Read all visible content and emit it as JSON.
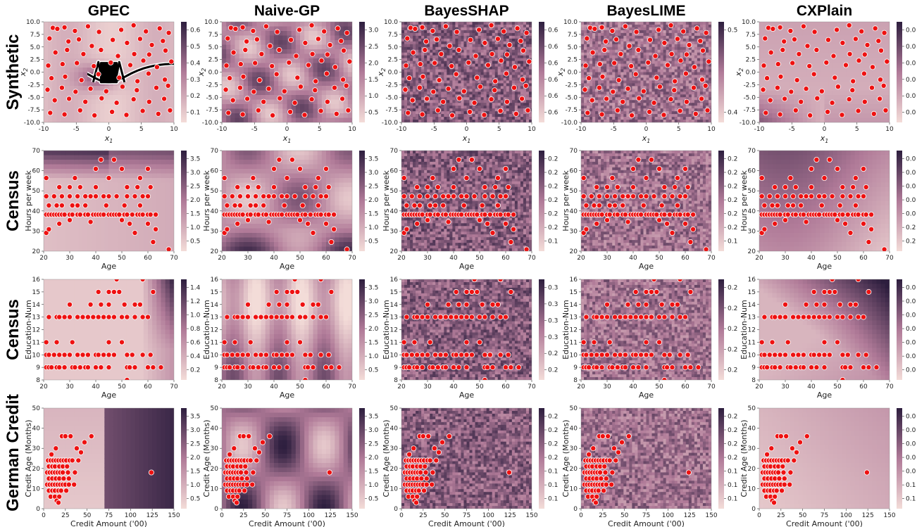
{
  "figure": {
    "methods": [
      "GPEC",
      "Naive-GP",
      "BayesSHAP",
      "BayesLIME",
      "CXPlain"
    ],
    "datasets": [
      "Synthetic",
      "Census",
      "Census",
      "German Credit"
    ],
    "colors": {
      "cmap_low": "#f3dcd8",
      "cmap_mid": "#b07a98",
      "cmap_high": "#2d1e3e",
      "points": "#ee1111",
      "point_edge": "#ffffff",
      "boundary": "#000000",
      "boundary_halo": "#ffffff"
    }
  },
  "chart_data": [
    {
      "type": "heatmap",
      "row": 0,
      "panel": "Synthetic",
      "xlabel": "x1",
      "ylabel": "x2",
      "xlim": [
        -10,
        10
      ],
      "ylim": [
        -10,
        10
      ],
      "xticks": [
        "-10",
        "-5",
        "0",
        "5",
        "10"
      ],
      "yticks": [
        "-10.0",
        "-7.5",
        "-5.0",
        "-2.5",
        "0.0",
        "2.5",
        "5.0",
        "7.5",
        "10.0"
      ],
      "colorbars": [
        [
          "0.1",
          "0.2",
          "0.3",
          "0.4",
          "0.5",
          "0.6"
        ],
        [
          "0.5",
          "1.0",
          "1.5",
          "2.0",
          "2.5",
          "3.0"
        ],
        [
          "0.6",
          "0.6",
          "0.6",
          "0.6",
          "0.6",
          "0.6"
        ],
        [
          "0.4",
          "0.5"
        ],
        [
          "0.0",
          "0.0",
          "0.0",
          "0.0",
          "0.0",
          "0.0"
        ]
      ],
      "points": [
        [
          -8.6,
          8.8
        ],
        [
          -7.9,
          8.6
        ],
        [
          -6.8,
          8.9
        ],
        [
          -5.2,
          8.2
        ],
        [
          -3.2,
          9.1
        ],
        [
          -1.5,
          8.0
        ],
        [
          1.9,
          8.4
        ],
        [
          3.8,
          9.3
        ],
        [
          5.7,
          8.1
        ],
        [
          7.8,
          8.7
        ],
        [
          9.2,
          7.8
        ],
        [
          -9.1,
          6.7
        ],
        [
          -6.2,
          6.1
        ],
        [
          -4.6,
          6.5
        ],
        [
          -2.6,
          5.2
        ],
        [
          0.6,
          6.4
        ],
        [
          2.8,
          5.8
        ],
        [
          4.8,
          6.6
        ],
        [
          6.6,
          5.4
        ],
        [
          8.3,
          6.2
        ],
        [
          -8.2,
          3.9
        ],
        [
          -6.4,
          4.4
        ],
        [
          -3.9,
          3.6
        ],
        [
          -1.2,
          4.4
        ],
        [
          1.4,
          3.2
        ],
        [
          3.9,
          3.6
        ],
        [
          6.2,
          3.5
        ],
        [
          8.7,
          4.3
        ],
        [
          -9.3,
          1.3
        ],
        [
          -7.1,
          1.6
        ],
        [
          -4.9,
          1.8
        ],
        [
          -2.3,
          1.2
        ],
        [
          0.3,
          1.9
        ],
        [
          3.3,
          1.4
        ],
        [
          5.3,
          2.3
        ],
        [
          7.4,
          1.0
        ],
        [
          9.6,
          2.1
        ],
        [
          -8.8,
          -1.2
        ],
        [
          -6.7,
          -0.9
        ],
        [
          -4.2,
          -1.6
        ],
        [
          -1.6,
          -0.4
        ],
        [
          1.6,
          -1.1
        ],
        [
          4.4,
          -1.8
        ],
        [
          6.1,
          -0.3
        ],
        [
          8.6,
          -1.5
        ],
        [
          -9.4,
          -3.5
        ],
        [
          -7.2,
          -3.1
        ],
        [
          -5.1,
          -3.9
        ],
        [
          -2.8,
          -3.3
        ],
        [
          -0.4,
          -3.8
        ],
        [
          2.1,
          -2.9
        ],
        [
          4.3,
          -3.6
        ],
        [
          7.3,
          -3.1
        ],
        [
          9.1,
          -2.7
        ],
        [
          -8.3,
          -5.6
        ],
        [
          -6.1,
          -5.3
        ],
        [
          -3.6,
          -5.9
        ],
        [
          -1.1,
          -5.2
        ],
        [
          1.2,
          -6.1
        ],
        [
          3.8,
          -5.4
        ],
        [
          6.2,
          -5.9
        ],
        [
          8.5,
          -5.3
        ],
        [
          -9.0,
          -8.1
        ],
        [
          -6.8,
          -8.4
        ],
        [
          -4.4,
          -7.6
        ],
        [
          -2.2,
          -8.6
        ],
        [
          0.5,
          -7.9
        ],
        [
          2.7,
          -8.5
        ],
        [
          5.2,
          -7.7
        ],
        [
          7.6,
          -8.3
        ],
        [
          9.4,
          -7.6
        ]
      ]
    },
    {
      "type": "heatmap",
      "row": 1,
      "panel": "Census",
      "xlabel": "Age",
      "ylabel": "Hours per week",
      "xlim": [
        20,
        70
      ],
      "ylim": [
        20,
        75
      ],
      "xticks": [
        "20",
        "30",
        "40",
        "50",
        "60",
        "70"
      ],
      "yticks": [
        "20",
        "30",
        "40",
        "50",
        "60",
        "70"
      ],
      "colorbars": [
        [
          "0.5",
          "1.0",
          "1.5",
          "2.0",
          "2.5",
          "3.0",
          "3.5"
        ],
        [
          "0.5",
          "1.0",
          "1.5",
          "2.0",
          "2.5",
          "3.0",
          "3.5"
        ],
        [
          "0.1",
          "0.2",
          "0.2",
          "0.2",
          "0.2",
          "0.2",
          "0.2"
        ],
        [
          "0.1",
          "0.2",
          "0.2",
          "0.2",
          "0.2",
          "0.2",
          "0.2"
        ],
        [
          "0.2",
          "0.2",
          "0.0",
          "0.0",
          "0.0",
          "0.0",
          "0.0"
        ]
      ],
      "points": [
        [
          21,
          40
        ],
        [
          22,
          40
        ],
        [
          23,
          40
        ],
        [
          24,
          40
        ],
        [
          25,
          40
        ],
        [
          26,
          40
        ],
        [
          27,
          40
        ],
        [
          28,
          40
        ],
        [
          30,
          40
        ],
        [
          31,
          40
        ],
        [
          33,
          40
        ],
        [
          34,
          40
        ],
        [
          36,
          40
        ],
        [
          37,
          40
        ],
        [
          39,
          40
        ],
        [
          40,
          40
        ],
        [
          41,
          40
        ],
        [
          42,
          40
        ],
        [
          43,
          40
        ],
        [
          45,
          40
        ],
        [
          46,
          40
        ],
        [
          47,
          40
        ],
        [
          48,
          40
        ],
        [
          49,
          40
        ],
        [
          51,
          40
        ],
        [
          52,
          40
        ],
        [
          54,
          40
        ],
        [
          56,
          40
        ],
        [
          57,
          40
        ],
        [
          58,
          40
        ],
        [
          60,
          40
        ],
        [
          61,
          40
        ],
        [
          63,
          40
        ],
        [
          22,
          45
        ],
        [
          25,
          45
        ],
        [
          27,
          45
        ],
        [
          31,
          45
        ],
        [
          33,
          45
        ],
        [
          36,
          45
        ],
        [
          44,
          45
        ],
        [
          51,
          45
        ],
        [
          57,
          45
        ],
        [
          21,
          50
        ],
        [
          24,
          50
        ],
        [
          27,
          50
        ],
        [
          30,
          50
        ],
        [
          33,
          50
        ],
        [
          36,
          50
        ],
        [
          38,
          50
        ],
        [
          40,
          50
        ],
        [
          43,
          50
        ],
        [
          45,
          50
        ],
        [
          48,
          50
        ],
        [
          52,
          50
        ],
        [
          55,
          50
        ],
        [
          58,
          50
        ],
        [
          60,
          50
        ],
        [
          26,
          55
        ],
        [
          30,
          55
        ],
        [
          34,
          55
        ],
        [
          40,
          55
        ],
        [
          52,
          55
        ],
        [
          56,
          55
        ],
        [
          61,
          55
        ],
        [
          45,
          60
        ],
        [
          21,
          60
        ],
        [
          57,
          60
        ],
        [
          32,
          60
        ],
        [
          40,
          65
        ],
        [
          50,
          65
        ],
        [
          60,
          65
        ],
        [
          42,
          70
        ],
        [
          47,
          70
        ],
        [
          21,
          30
        ],
        [
          22,
          32
        ],
        [
          55,
          30
        ],
        [
          60,
          35
        ],
        [
          63,
          32
        ],
        [
          62,
          25
        ],
        [
          68,
          21
        ],
        [
          26,
          35
        ],
        [
          30,
          37
        ],
        [
          38,
          36
        ],
        [
          50,
          37
        ],
        [
          53,
          35
        ]
      ]
    },
    {
      "type": "heatmap",
      "row": 2,
      "panel": "Census",
      "xlabel": "Age",
      "ylabel": "Education-Num",
      "xlim": [
        20,
        70
      ],
      "ylim": [
        8,
        16
      ],
      "xticks": [
        "20",
        "30",
        "40",
        "50",
        "60",
        "70"
      ],
      "yticks": [
        "8",
        "9",
        "10",
        "11",
        "12",
        "13",
        "14",
        "15",
        "16"
      ],
      "colorbars": [
        [
          "0.2",
          "0.4",
          "0.6",
          "0.8",
          "1.0",
          "1.2",
          "1.4"
        ],
        [
          "0.5",
          "1.0",
          "1.5",
          "2.0",
          "2.5",
          "3.0",
          "3.5"
        ],
        [
          "0.2",
          "0.2",
          "0.3",
          "0.3",
          "0.3",
          "0.3"
        ],
        [
          "0.2",
          "0.2",
          "0.2",
          "0.2",
          "0.2"
        ],
        [
          "0.0",
          "0.0",
          "0.0",
          "0.0",
          "0.0",
          "0.0",
          "0.0"
        ]
      ],
      "points": [
        [
          21,
          9
        ],
        [
          22,
          9
        ],
        [
          23,
          9
        ],
        [
          25,
          9
        ],
        [
          26,
          9
        ],
        [
          28,
          9
        ],
        [
          31,
          9
        ],
        [
          32,
          9
        ],
        [
          34,
          9
        ],
        [
          36,
          9
        ],
        [
          37,
          9
        ],
        [
          40,
          9
        ],
        [
          42,
          9
        ],
        [
          45,
          9
        ],
        [
          52,
          9
        ],
        [
          53,
          9
        ],
        [
          55,
          9
        ],
        [
          60,
          9
        ],
        [
          62,
          9
        ],
        [
          65,
          9
        ],
        [
          21,
          10
        ],
        [
          22,
          10
        ],
        [
          24,
          10
        ],
        [
          26,
          10
        ],
        [
          28,
          10
        ],
        [
          30,
          10
        ],
        [
          33,
          10
        ],
        [
          35,
          10
        ],
        [
          37,
          10
        ],
        [
          40,
          10
        ],
        [
          41,
          10
        ],
        [
          43,
          10
        ],
        [
          45,
          10
        ],
        [
          47,
          10
        ],
        [
          52,
          10
        ],
        [
          54,
          10
        ],
        [
          58,
          10
        ],
        [
          61,
          10
        ],
        [
          21,
          11
        ],
        [
          25,
          11
        ],
        [
          31,
          11
        ],
        [
          45,
          11
        ],
        [
          50,
          11
        ],
        [
          22,
          13
        ],
        [
          25,
          13
        ],
        [
          26,
          13
        ],
        [
          28,
          13
        ],
        [
          30,
          13
        ],
        [
          33,
          13
        ],
        [
          35,
          13
        ],
        [
          37,
          13
        ],
        [
          39,
          13
        ],
        [
          41,
          13
        ],
        [
          43,
          13
        ],
        [
          45,
          13
        ],
        [
          47,
          13
        ],
        [
          50,
          13
        ],
        [
          52,
          13
        ],
        [
          55,
          13
        ],
        [
          58,
          13
        ],
        [
          60,
          13
        ],
        [
          38,
          14
        ],
        [
          42,
          14
        ],
        [
          45,
          14
        ],
        [
          51,
          14
        ],
        [
          55,
          14
        ],
        [
          57,
          14
        ],
        [
          30,
          14
        ],
        [
          41,
          15
        ],
        [
          45,
          15
        ],
        [
          47,
          15
        ],
        [
          49,
          15
        ],
        [
          62,
          15
        ],
        [
          48,
          16
        ],
        [
          58,
          16
        ],
        [
          52,
          8
        ]
      ]
    },
    {
      "type": "heatmap",
      "row": 3,
      "panel": "German Credit",
      "xlabel": "Credit Amount ('00)",
      "ylabel": "Credit Age (Months)",
      "xlim": [
        0,
        150
      ],
      "ylim": [
        0,
        50
      ],
      "xticks": [
        "0",
        "25",
        "50",
        "75",
        "100",
        "125",
        "150"
      ],
      "yticks": [
        "0",
        "10",
        "20",
        "30",
        "40",
        "50"
      ],
      "colorbars": [
        [
          "0.5",
          "1.0",
          "1.5",
          "2.0",
          "2.5",
          "3.0",
          "3.5"
        ],
        [
          "0.5",
          "1.0",
          "1.5",
          "2.0",
          "2.5",
          "3.0",
          "3.5"
        ],
        [
          "0.1",
          "0.1",
          "0.1",
          "0.2",
          "0.2",
          "0.2",
          "0.2"
        ],
        [
          "0.1",
          "0.1",
          "0.1",
          "0.2",
          "0.2",
          "0.2",
          "0.2"
        ],
        [
          "0.1",
          "0.1",
          "0.0",
          "0.0",
          "0.0",
          "0.0",
          "0.0"
        ]
      ],
      "points": [
        [
          5,
          24
        ],
        [
          8,
          24
        ],
        [
          11,
          24
        ],
        [
          14,
          24
        ],
        [
          17,
          24
        ],
        [
          20,
          24
        ],
        [
          23,
          24
        ],
        [
          26,
          24
        ],
        [
          30,
          24
        ],
        [
          33,
          24
        ],
        [
          40,
          24
        ],
        [
          6,
          21
        ],
        [
          10,
          21
        ],
        [
          13,
          21
        ],
        [
          18,
          21
        ],
        [
          22,
          21
        ],
        [
          27,
          21
        ],
        [
          4,
          18
        ],
        [
          7,
          18
        ],
        [
          10,
          18
        ],
        [
          13,
          18
        ],
        [
          16,
          18
        ],
        [
          19,
          18
        ],
        [
          22,
          18
        ],
        [
          28,
          18
        ],
        [
          36,
          18
        ],
        [
          124,
          18
        ],
        [
          6,
          15
        ],
        [
          10,
          15
        ],
        [
          14,
          15
        ],
        [
          18,
          15
        ],
        [
          23,
          15
        ],
        [
          29,
          15
        ],
        [
          4,
          12
        ],
        [
          7,
          12
        ],
        [
          10,
          12
        ],
        [
          13,
          12
        ],
        [
          16,
          12
        ],
        [
          19,
          12
        ],
        [
          22,
          12
        ],
        [
          25,
          12
        ],
        [
          29,
          12
        ],
        [
          35,
          12
        ],
        [
          6,
          9
        ],
        [
          10,
          9
        ],
        [
          13,
          9
        ],
        [
          17,
          9
        ],
        [
          20,
          9
        ],
        [
          26,
          9
        ],
        [
          8,
          6
        ],
        [
          13,
          6
        ],
        [
          18,
          6
        ],
        [
          15,
          4
        ],
        [
          17,
          3
        ],
        [
          21,
          36
        ],
        [
          25,
          36
        ],
        [
          31,
          36
        ],
        [
          47,
          33
        ],
        [
          55,
          36
        ],
        [
          38,
          30
        ],
        [
          14,
          30
        ],
        [
          9,
          27
        ],
        [
          43,
          28
        ]
      ]
    }
  ]
}
